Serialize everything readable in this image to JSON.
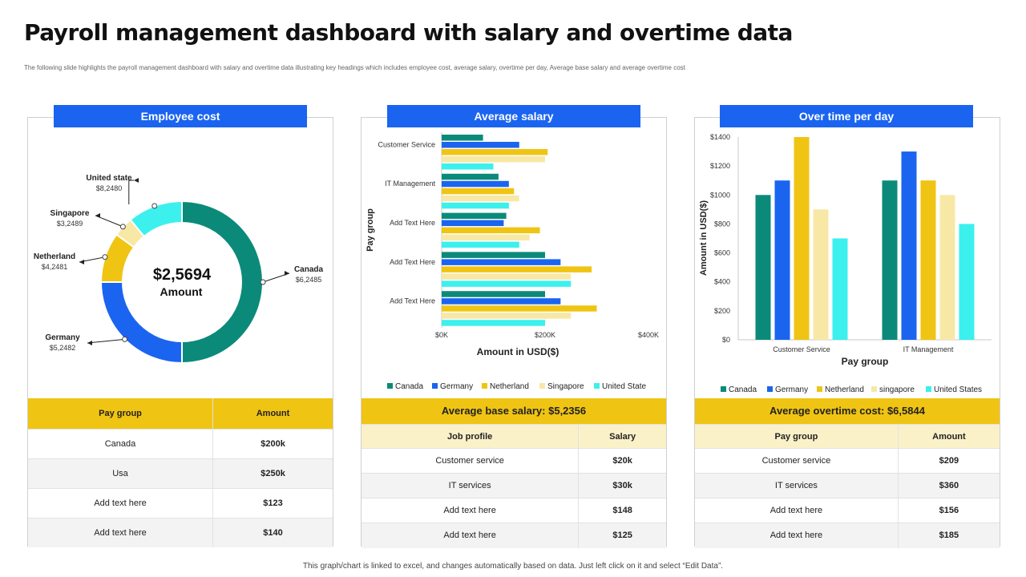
{
  "title": "Payroll management dashboard with salary and overtime data",
  "subtitle": "The following slide highlights the payroll management dashboard with salary and overtime data illustrating key headings which includes employee cost, average salary, overtime per day, Average base salary and average overtime cost",
  "footer": "This graph/chart is linked to excel, and changes automatically based on data. Just left click on it and select “Edit Data”.",
  "colors": {
    "header_blue": "#1a64f0",
    "table_gold": "#f0c413",
    "canada": "#0b8a7a",
    "germany": "#1a64f0",
    "netherland": "#f0c413",
    "singapore": "#f8e8a6",
    "united_state": "#3cf0ee"
  },
  "panel1": {
    "header": "Employee cost",
    "donut_center_value": "$2,5694",
    "donut_center_label": "Amount",
    "table": {
      "columns": [
        "Pay group",
        "Amount"
      ],
      "rows": [
        [
          "Canada",
          "$200k"
        ],
        [
          "Usa",
          "$250k"
        ],
        [
          "Add text here",
          "$123"
        ],
        [
          "Add text here",
          "$140"
        ]
      ]
    }
  },
  "panel2": {
    "header": "Average salary",
    "band": "Average base salary: $5,2356",
    "table": {
      "columns": [
        "Job profile",
        "Salary"
      ],
      "rows": [
        [
          "Customer service",
          "$20k"
        ],
        [
          "IT services",
          "$30k"
        ],
        [
          "Add text here",
          "$148"
        ],
        [
          "Add text here",
          "$125"
        ]
      ]
    }
  },
  "panel3": {
    "header": "Over time per day",
    "band": "Average overtime cost: $6,5844",
    "table": {
      "columns": [
        "Pay group",
        "Amount"
      ],
      "rows": [
        [
          "Customer service",
          "$209"
        ],
        [
          "IT services",
          "$360"
        ],
        [
          "Add text here",
          "$156"
        ],
        [
          "Add text here",
          "$185"
        ]
      ]
    }
  },
  "chart_data": [
    {
      "type": "pie",
      "variant": "donut",
      "categories": [
        "Canada",
        "Germany",
        "Netherland",
        "Singapore",
        "United state"
      ],
      "values": [
        6.2485,
        5.2482,
        4.2481,
        3.2489,
        8.248
      ],
      "weights": [
        50,
        25,
        10,
        4,
        11
      ],
      "value_labels": [
        "$6,2485",
        "$5,2482",
        "$4,2481",
        "$3,2489",
        "$8,2480"
      ],
      "colors": [
        "#0b8a7a",
        "#1a64f0",
        "#f0c413",
        "#f8e8a6",
        "#3cf0ee"
      ]
    },
    {
      "type": "bar",
      "orientation": "horizontal",
      "categories": [
        "Customer Service",
        "IT Management",
        "Add Text Here",
        "Add Text Here",
        "Add Text Here"
      ],
      "series": [
        {
          "name": "Canada",
          "values": [
            80,
            110,
            125,
            200,
            200
          ],
          "color": "#0b8a7a"
        },
        {
          "name": "Germany",
          "values": [
            150,
            130,
            120,
            230,
            230
          ],
          "color": "#1a64f0"
        },
        {
          "name": "Netherland",
          "values": [
            205,
            140,
            190,
            290,
            300
          ],
          "color": "#f0c413"
        },
        {
          "name": "Singapore",
          "values": [
            200,
            150,
            170,
            250,
            250
          ],
          "color": "#f8e8a6"
        },
        {
          "name": "United State",
          "values": [
            100,
            130,
            150,
            250,
            200
          ],
          "color": "#3cf0ee"
        }
      ],
      "xlabel": "Amount  in USD($)",
      "ylabel": "Pay group",
      "xlim": [
        0,
        400
      ],
      "xticks": [
        "$0K",
        "$200K",
        "$400K"
      ],
      "legend": "bottom"
    },
    {
      "type": "bar",
      "categories": [
        "Customer Service",
        "IT Management"
      ],
      "series": [
        {
          "name": "Canada",
          "values": [
            1000,
            1100
          ],
          "color": "#0b8a7a"
        },
        {
          "name": "Germany",
          "values": [
            1100,
            1300
          ],
          "color": "#1a64f0"
        },
        {
          "name": "Netherland",
          "values": [
            1400,
            1100
          ],
          "color": "#f0c413"
        },
        {
          "name": "singapore",
          "values": [
            900,
            1000
          ],
          "color": "#f8e8a6"
        },
        {
          "name": "United States",
          "values": [
            700,
            800
          ],
          "color": "#3cf0ee"
        }
      ],
      "xlabel": "Pay group",
      "ylabel": "Amount in USD($)",
      "ylim": [
        0,
        1400
      ],
      "yticks": [
        "$0",
        "$200",
        "$400",
        "$600",
        "$800",
        "$1000",
        "$1200",
        "$1400"
      ],
      "legend": "bottom"
    }
  ]
}
